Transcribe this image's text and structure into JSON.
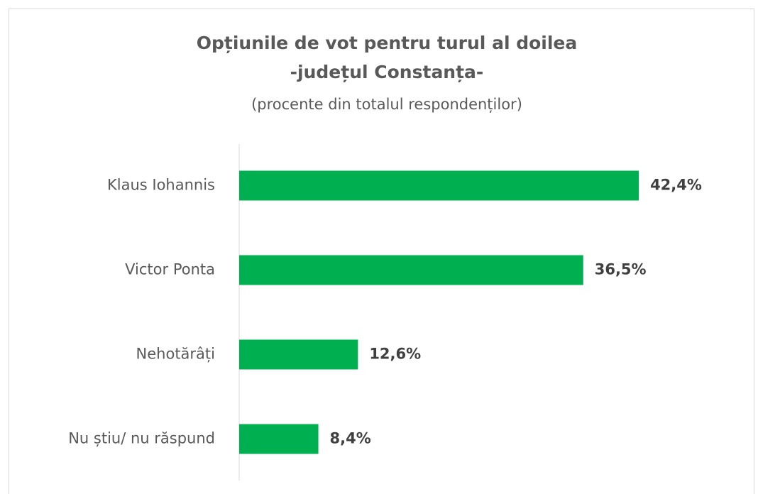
{
  "chart_data": {
    "type": "bar",
    "orientation": "horizontal",
    "title": [
      "Opțiunile de vot pentru turul al doilea",
      "-județul Constanța-"
    ],
    "subtitle": "(procente din totalul respondenților)",
    "categories": [
      "Klaus Iohannis",
      "Victor Ponta",
      "Nehotărâți",
      "Nu știu/ nu răspund"
    ],
    "values": [
      42.4,
      36.5,
      12.6,
      8.4
    ],
    "value_labels": [
      "42,4%",
      "36,5%",
      "12,6%",
      "8,4%"
    ],
    "color": "#00b050"
  }
}
